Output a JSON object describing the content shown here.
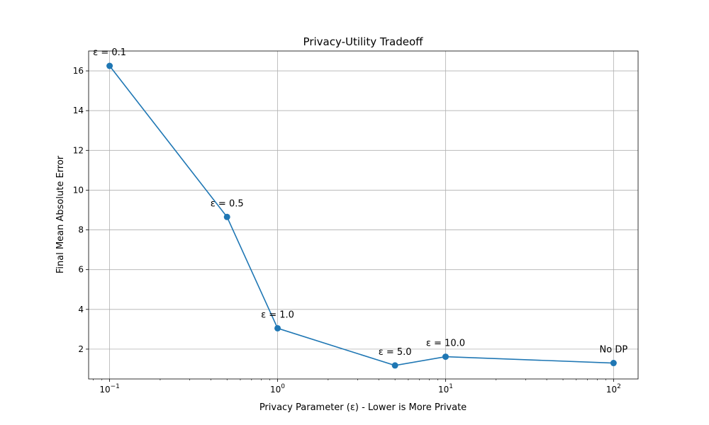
{
  "chart_data": {
    "type": "line",
    "title": "Privacy-Utility Tradeoff",
    "xlabel": "Privacy Parameter (ε) - Lower is More Private",
    "ylabel": "Final Mean Absolute Error",
    "xscale": "log",
    "xlim": [
      0.075,
      140
    ],
    "ylim": [
      0.5,
      17.0
    ],
    "grid": true,
    "line_color": "#1f77b4",
    "x_ticks": [
      {
        "value": 0.1,
        "base": "10",
        "exp": "−1"
      },
      {
        "value": 1,
        "base": "10",
        "exp": "0"
      },
      {
        "value": 10,
        "base": "10",
        "exp": "1"
      },
      {
        "value": 100,
        "base": "10",
        "exp": "2"
      }
    ],
    "y_ticks": [
      {
        "value": 2,
        "label": "2"
      },
      {
        "value": 4,
        "label": "4"
      },
      {
        "value": 6,
        "label": "6"
      },
      {
        "value": 8,
        "label": "8"
      },
      {
        "value": 10,
        "label": "10"
      },
      {
        "value": 12,
        "label": "12"
      },
      {
        "value": 14,
        "label": "14"
      },
      {
        "value": 16,
        "label": "16"
      }
    ],
    "points": [
      {
        "x": 0.1,
        "y": 16.25,
        "label": "ε = 0.1"
      },
      {
        "x": 0.5,
        "y": 8.65,
        "label": "ε = 0.5"
      },
      {
        "x": 1.0,
        "y": 3.05,
        "label": "ε = 1.0"
      },
      {
        "x": 5.0,
        "y": 1.18,
        "label": "ε = 5.0"
      },
      {
        "x": 10.0,
        "y": 1.62,
        "label": "ε = 10.0"
      },
      {
        "x": 100.0,
        "y": 1.3,
        "label": "No DP"
      }
    ]
  }
}
